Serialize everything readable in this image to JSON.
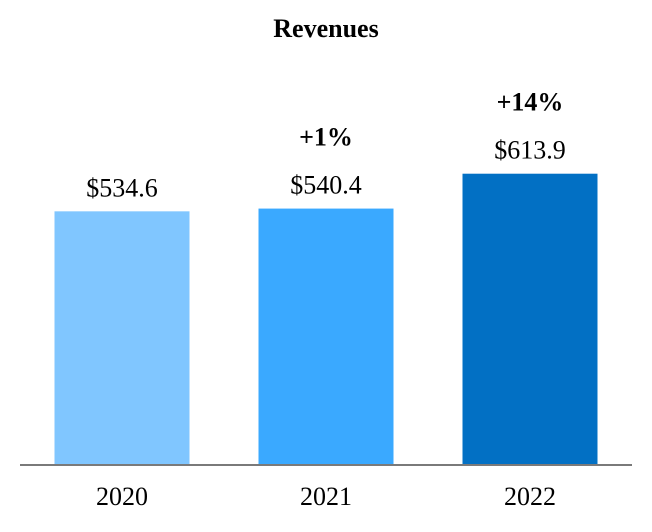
{
  "chart_data": {
    "type": "bar",
    "title": "Revenues",
    "xlabel": "",
    "ylabel": "",
    "ylim": [
      0,
      680
    ],
    "grid": false,
    "categories": [
      "2020",
      "2021",
      "2022"
    ],
    "values": [
      534.6,
      540.4,
      613.9
    ],
    "value_labels": [
      "$534.6",
      "$540.4",
      "$613.9"
    ],
    "change_labels": [
      "",
      "+1%",
      "+14%"
    ],
    "colors": [
      "#80c6ff",
      "#3aa9ff",
      "#0270c4"
    ],
    "axis_color": "#7a7a7a"
  }
}
